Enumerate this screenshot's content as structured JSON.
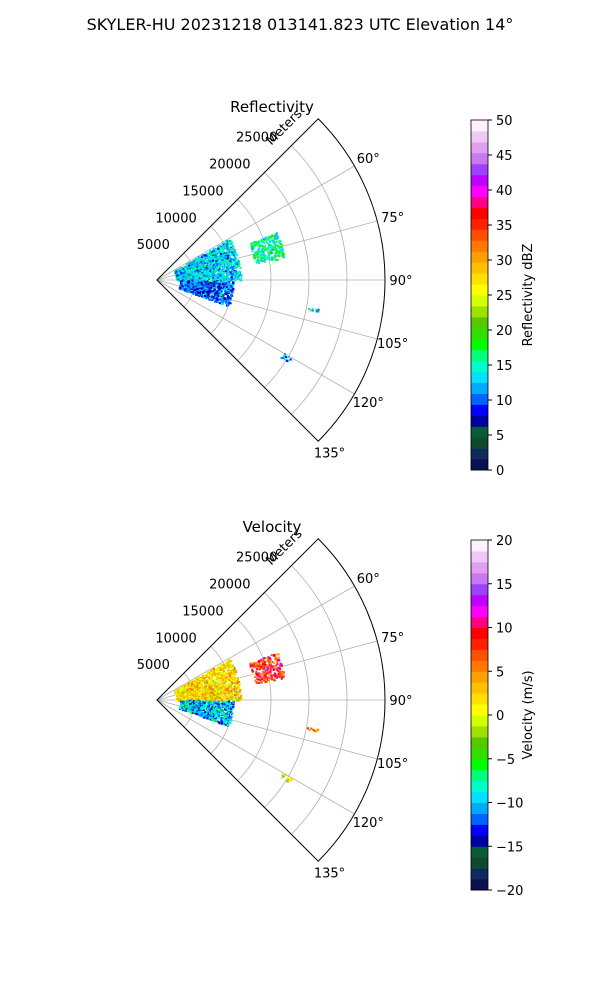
{
  "figure": {
    "title": "SKYLER-HU  20231218  013141.823 UTC Elevation 14°"
  },
  "chart_data": [
    {
      "type": "heatmap",
      "projection": "polar-sector",
      "title": "Reflectivity",
      "radial_label": "Meters",
      "radial_ticks": [
        5000,
        10000,
        15000,
        20000,
        25000
      ],
      "radial_tick_labels": [
        "5000",
        "10000",
        "15000",
        "20000",
        "25000"
      ],
      "radial_max": 30000,
      "angle_range_deg": [
        45,
        135
      ],
      "angle_ticks_deg": [
        60,
        75,
        90,
        105,
        120,
        135
      ],
      "angle_tick_labels": [
        "60°",
        "75°",
        "90°",
        "105°",
        "120°",
        "135°"
      ],
      "grid": true,
      "colorbar": {
        "label": "Reflectivity dBZ",
        "range": [
          0,
          50
        ],
        "ticks": [
          0,
          5,
          10,
          15,
          20,
          25,
          30,
          35,
          40,
          45,
          50
        ],
        "tick_labels": [
          "0",
          "5",
          "10",
          "15",
          "20",
          "25",
          "30",
          "35",
          "40",
          "45",
          "50"
        ],
        "colors": [
          "#0a1050",
          "#0f2b5a",
          "#0d4a30",
          "#0b5a3a",
          "#0000a0",
          "#0000ff",
          "#0064ff",
          "#00aaff",
          "#00e0ff",
          "#00ffc8",
          "#00ff7a",
          "#00ff00",
          "#33dd00",
          "#55c800",
          "#9ee000",
          "#d4ff00",
          "#ffff00",
          "#ffe000",
          "#ffc000",
          "#ffa000",
          "#ff7800",
          "#ff5000",
          "#ff2000",
          "#ff0000",
          "#ff0080",
          "#ff00ff",
          "#c000ff",
          "#a040ff",
          "#c878f0",
          "#e0a0f0",
          "#f0c8f8",
          "#fff0ff"
        ]
      },
      "echo_regions": [
        {
          "r": [
            2500,
            11000
          ],
          "az": [
            60,
            90
          ],
          "value": 13
        },
        {
          "r": [
            3000,
            10000
          ],
          "az": [
            90,
            110
          ],
          "value": 10
        },
        {
          "r": [
            13000,
            17000
          ],
          "az": [
            68,
            80
          ],
          "value": 16
        },
        {
          "r": [
            20000,
            21500
          ],
          "az": [
            100,
            101
          ],
          "value": 14
        },
        {
          "r": [
            19000,
            20500
          ],
          "az": [
            120,
            122
          ],
          "value": 12
        }
      ]
    },
    {
      "type": "heatmap",
      "projection": "polar-sector",
      "title": "Velocity",
      "radial_label": "Meters",
      "radial_ticks": [
        5000,
        10000,
        15000,
        20000,
        25000
      ],
      "radial_tick_labels": [
        "5000",
        "10000",
        "15000",
        "20000",
        "25000"
      ],
      "radial_max": 30000,
      "angle_range_deg": [
        45,
        135
      ],
      "angle_ticks_deg": [
        60,
        75,
        90,
        105,
        120,
        135
      ],
      "angle_tick_labels": [
        "60°",
        "75°",
        "90°",
        "105°",
        "120°",
        "135°"
      ],
      "grid": true,
      "colorbar": {
        "label": "Velocity (m/s)",
        "range": [
          -20,
          20
        ],
        "ticks": [
          -20,
          -15,
          -10,
          -5,
          0,
          5,
          10,
          15,
          20
        ],
        "tick_labels": [
          "−20",
          "−15",
          "−10",
          "−5",
          "0",
          "5",
          "10",
          "15",
          "20"
        ],
        "colors": [
          "#0a1050",
          "#0f2b5a",
          "#0d4a30",
          "#0b5a3a",
          "#0000a0",
          "#0000ff",
          "#0064ff",
          "#00aaff",
          "#00e0ff",
          "#00ffc8",
          "#00ff7a",
          "#00ff00",
          "#33dd00",
          "#55c800",
          "#9ee000",
          "#d4ff00",
          "#ffff00",
          "#ffe000",
          "#ffc000",
          "#ffa000",
          "#ff7800",
          "#ff5000",
          "#ff2000",
          "#ff0000",
          "#ff0080",
          "#ff00ff",
          "#c000ff",
          "#a040ff",
          "#c878f0",
          "#e0a0f0",
          "#f0c8f8",
          "#fff0ff"
        ]
      },
      "echo_regions": [
        {
          "r": [
            2500,
            11000
          ],
          "az": [
            60,
            90
          ],
          "value": 2
        },
        {
          "r": [
            3000,
            10000
          ],
          "az": [
            90,
            110
          ],
          "value": -10
        },
        {
          "r": [
            13000,
            17000
          ],
          "az": [
            68,
            80
          ],
          "value": 8
        },
        {
          "r": [
            20000,
            21500
          ],
          "az": [
            100,
            101
          ],
          "value": 4
        },
        {
          "r": [
            19000,
            20500
          ],
          "az": [
            120,
            122
          ],
          "value": 0
        }
      ]
    }
  ]
}
